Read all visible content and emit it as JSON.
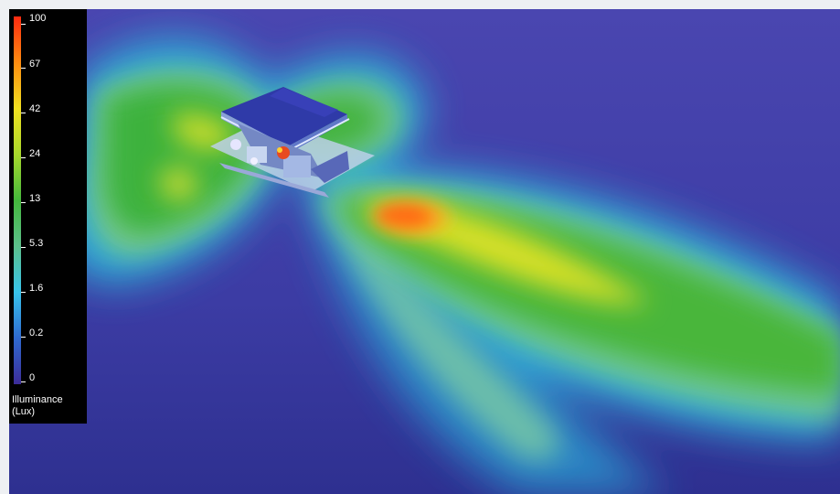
{
  "legend": {
    "title": "Illuminance",
    "unit": "(Lux)",
    "ticks": [
      "100",
      "67",
      "42",
      "24",
      "13",
      "5.3",
      "1.6",
      "0.2",
      "0"
    ],
    "colors": [
      "#ff2a10",
      "#ff8c10",
      "#f2e020",
      "#a8d82c",
      "#44b83c",
      "#5cc08c",
      "#38c4ec",
      "#2f6ad0",
      "#3c2c98"
    ]
  },
  "scene": {
    "background_color": "#3a3a9c",
    "subject": "vehicle-model"
  }
}
